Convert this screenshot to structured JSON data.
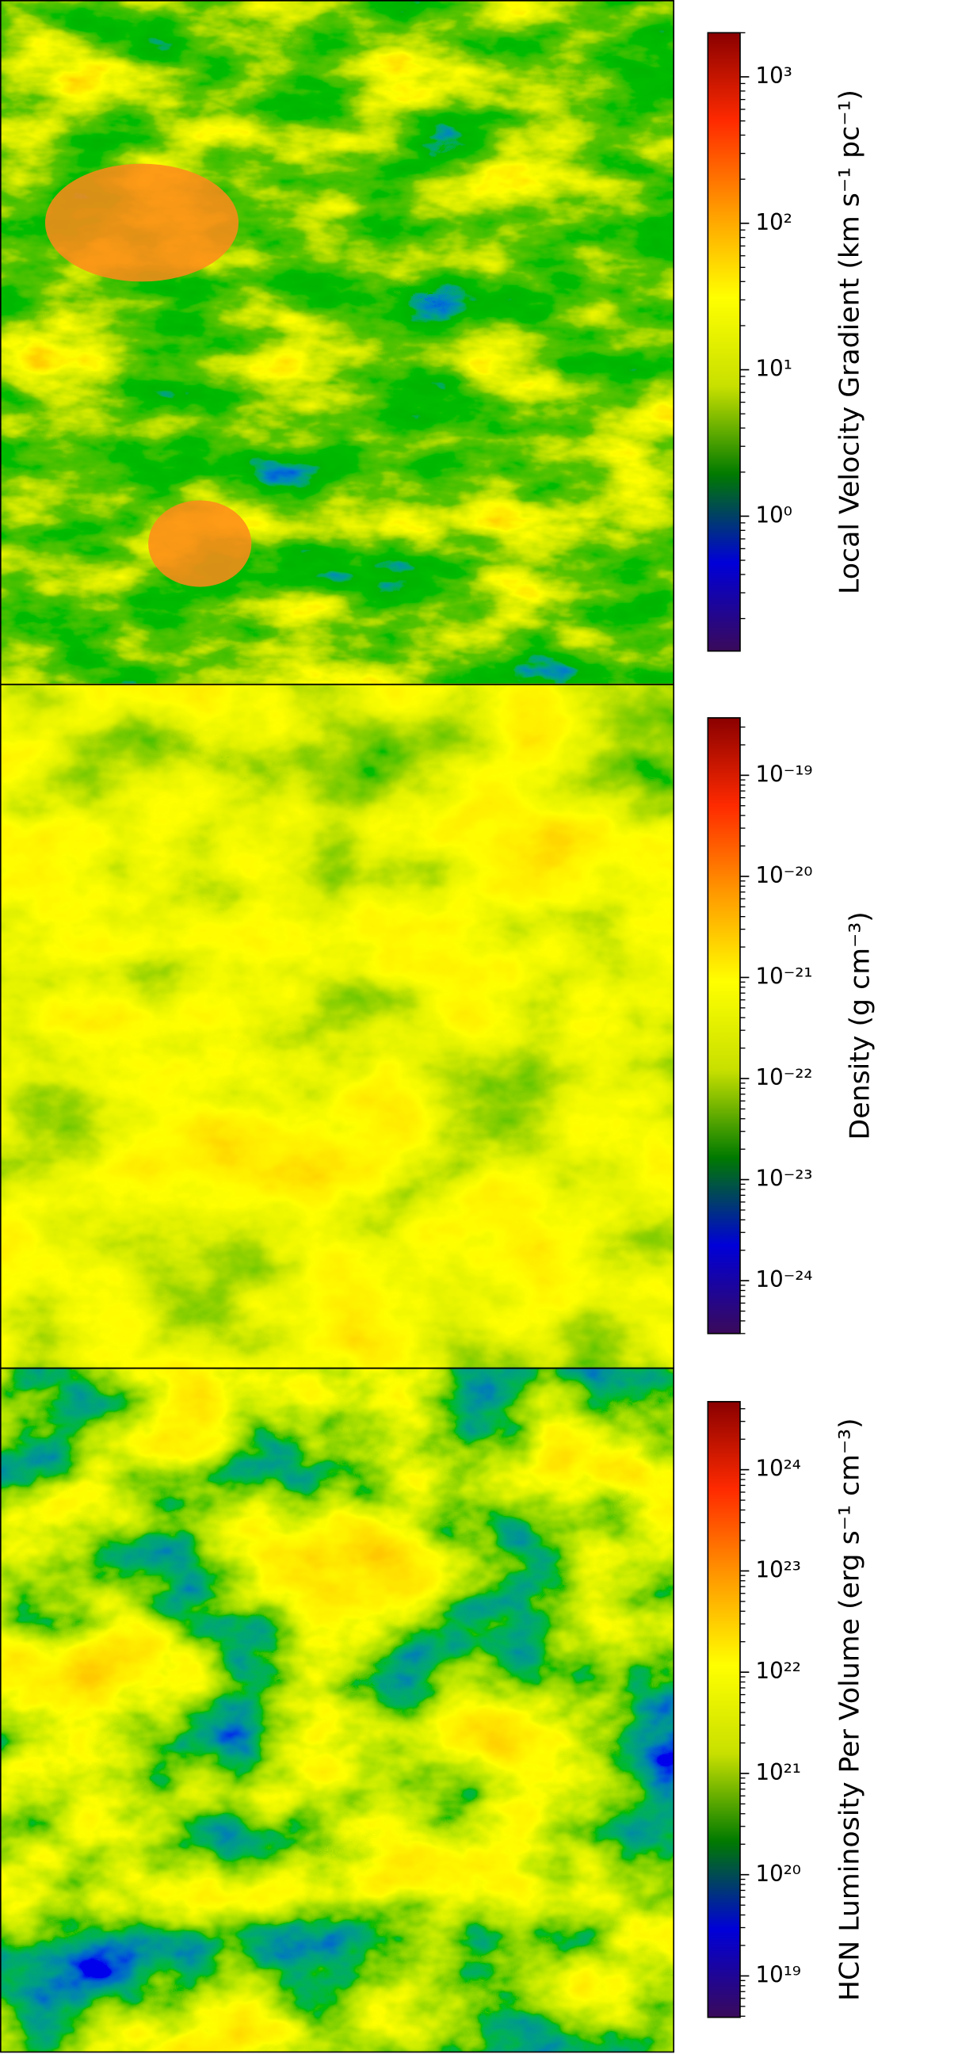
{
  "chart_data": [
    {
      "type": "heatmap",
      "colorbar_label": "Local Velocity Gradient (km s⁻¹ pc⁻¹)",
      "log_scale": true,
      "zlim": [
        0.12,
        2000
      ],
      "zticks": [
        {
          "value": 1,
          "label": "10⁰"
        },
        {
          "value": 10,
          "label": "10¹"
        },
        {
          "value": 100,
          "label": "10²"
        },
        {
          "value": 1000,
          "label": "10³"
        }
      ],
      "colormap": [
        "#3a0a5a",
        "#0000d8",
        "#007a00",
        "#c8e000",
        "#ffff00",
        "#ff9a00",
        "#ff2a00",
        "#8a0000"
      ]
    },
    {
      "type": "heatmap",
      "colorbar_label": "Density (g cm⁻³)",
      "log_scale": true,
      "zlim": [
        3e-25,
        3.7e-19
      ],
      "zticks": [
        {
          "value": 1e-24,
          "label": "10⁻²⁴"
        },
        {
          "value": 1e-23,
          "label": "10⁻²³"
        },
        {
          "value": 1e-22,
          "label": "10⁻²²"
        },
        {
          "value": 1e-21,
          "label": "10⁻²¹"
        },
        {
          "value": 1e-20,
          "label": "10⁻²⁰"
        },
        {
          "value": 1e-19,
          "label": "10⁻¹⁹"
        }
      ],
      "colormap": [
        "#3a0a5a",
        "#0000d8",
        "#007a00",
        "#c8e000",
        "#ffff00",
        "#ff9a00",
        "#ff2a00",
        "#8a0000"
      ]
    },
    {
      "type": "heatmap",
      "colorbar_label": "HCN Luminosity Per Volume (erg s⁻¹ cm⁻³)",
      "log_scale": true,
      "zlim": [
        3.9e+18,
        4.7e+24
      ],
      "zticks": [
        {
          "value": 1e+19,
          "label": "10¹⁹"
        },
        {
          "value": 1e+20,
          "label": "10²⁰"
        },
        {
          "value": 1e+21,
          "label": "10²¹"
        },
        {
          "value": 1e+22,
          "label": "10²²"
        },
        {
          "value": 1e+23,
          "label": "10²³"
        },
        {
          "value": 1e+24,
          "label": "10²⁴"
        }
      ],
      "colormap": [
        "#3a0a5a",
        "#0000d8",
        "#007a00",
        "#c8e000",
        "#ffff00",
        "#ff9a00",
        "#ff2a00",
        "#8a0000"
      ]
    }
  ]
}
